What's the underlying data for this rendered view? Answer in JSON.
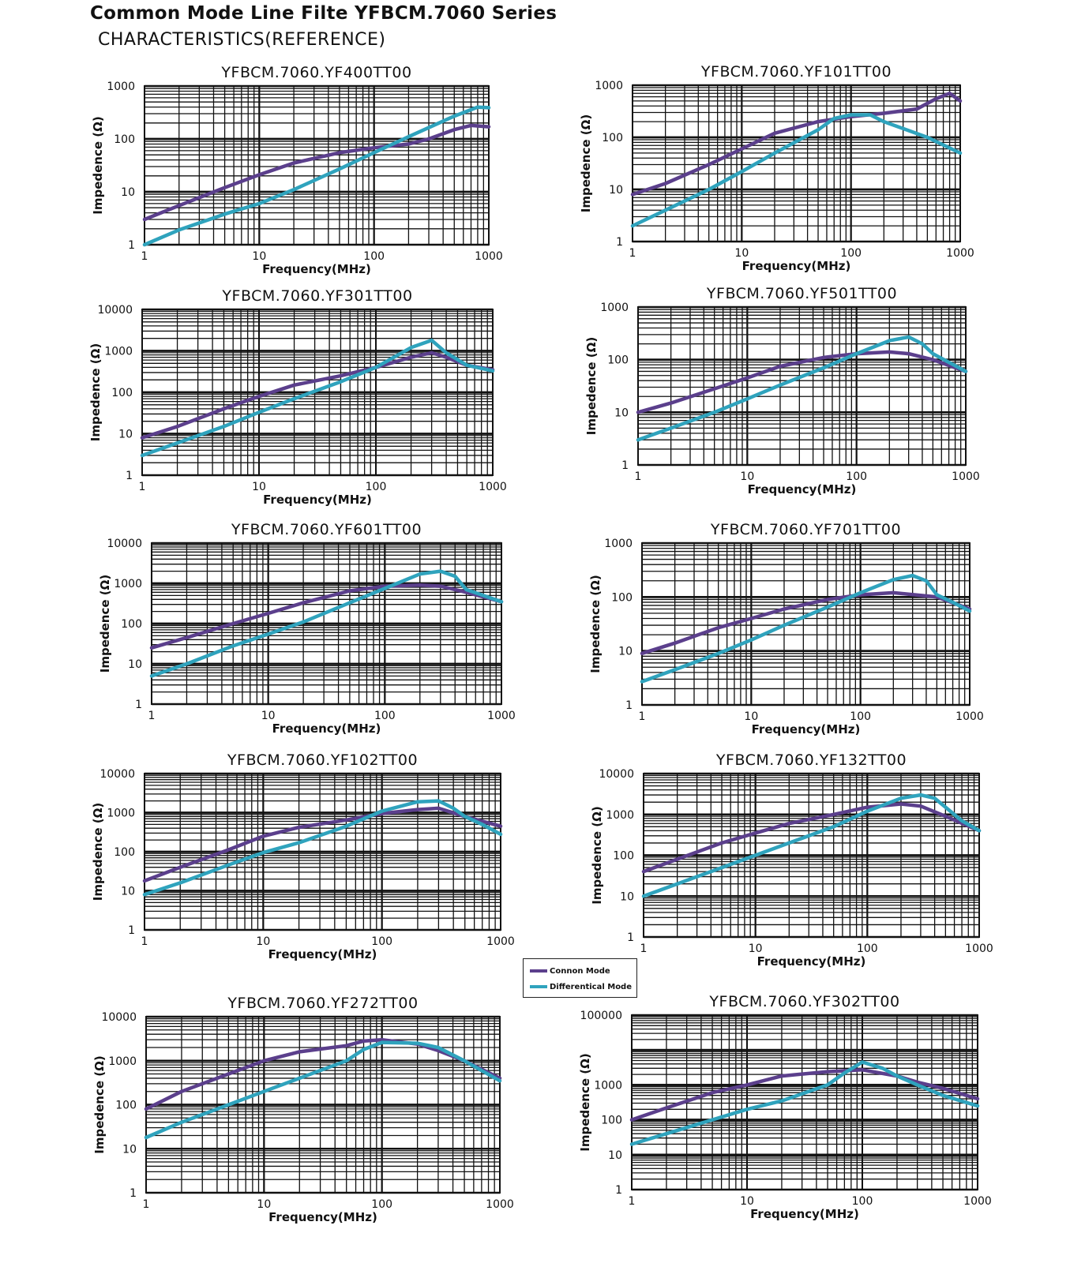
{
  "header": {
    "title": "Common Mode Line Filte YFBCM.7060 Series",
    "subtitle": "CHARACTERISTICS(REFERENCE)"
  },
  "legend": {
    "common_label": "Connon Mode",
    "differential_label": "Differentical Mode",
    "common_color": "#5b3f8c",
    "differential_color": "#2fa3bd"
  },
  "chart_data": [
    {
      "type": "line",
      "title": "YFBCM.7060.YF400TT00",
      "xlabel": "Frequency(MHz)",
      "ylabel": "Impedence (Ω)",
      "x_scale": "log",
      "y_scale": "log",
      "xlim": [
        1,
        1000
      ],
      "ylim": [
        1,
        1000
      ],
      "x_ticks": [
        "1",
        "10",
        "100",
        "1000"
      ],
      "y_ticks": [
        "1",
        "10",
        "100",
        "1000"
      ],
      "grid": true,
      "series": [
        {
          "name": "Connon Mode",
          "x": [
            1,
            2,
            5,
            10,
            20,
            50,
            100,
            200,
            300,
            500,
            700,
            1000
          ],
          "y": [
            3,
            5.5,
            12,
            21,
            35,
            55,
            68,
            80,
            100,
            150,
            180,
            170
          ]
        },
        {
          "name": "Differentical Mode",
          "x": [
            1,
            2,
            5,
            10,
            20,
            50,
            100,
            200,
            500,
            800,
            1000
          ],
          "y": [
            1,
            1.9,
            3.8,
            6,
            11,
            27,
            55,
            110,
            270,
            400,
            390
          ]
        }
      ]
    },
    {
      "type": "line",
      "title": "YFBCM.7060.YF101TT00",
      "xlabel": "Frequency(MHz)",
      "ylabel": "Impedence (Ω)",
      "x_scale": "log",
      "y_scale": "log",
      "xlim": [
        1,
        1000
      ],
      "ylim": [
        1,
        1000
      ],
      "x_ticks": [
        "1",
        "10",
        "100",
        "1000"
      ],
      "y_ticks": [
        "1",
        "10",
        "100",
        "1000"
      ],
      "grid": true,
      "series": [
        {
          "name": "Connon Mode",
          "x": [
            1,
            2,
            5,
            10,
            20,
            50,
            100,
            200,
            400,
            600,
            800,
            1000
          ],
          "y": [
            8,
            13,
            30,
            60,
            120,
            200,
            250,
            290,
            350,
            550,
            700,
            500
          ]
        },
        {
          "name": "Differentical Mode",
          "x": [
            1,
            2,
            5,
            10,
            20,
            50,
            70,
            100,
            150,
            200,
            500,
            1000
          ],
          "y": [
            2,
            4,
            10,
            22,
            50,
            140,
            230,
            270,
            270,
            200,
            100,
            50
          ]
        }
      ]
    },
    {
      "type": "line",
      "title": "YFBCM.7060.YF301TT00",
      "xlabel": "Frequency(MHz)",
      "ylabel": "Impedence (Ω)",
      "x_scale": "log",
      "y_scale": "log",
      "xlim": [
        1,
        1000
      ],
      "ylim": [
        1,
        10000
      ],
      "x_ticks": [
        "1",
        "10",
        "100",
        "1000"
      ],
      "y_ticks": [
        "1",
        "10",
        "100",
        "1000",
        "10000"
      ],
      "grid": true,
      "series": [
        {
          "name": "Connon Mode",
          "x": [
            1,
            2,
            5,
            10,
            20,
            50,
            100,
            200,
            300,
            400,
            600,
            1000
          ],
          "y": [
            8,
            15,
            40,
            80,
            150,
            250,
            400,
            700,
            900,
            700,
            450,
            350
          ]
        },
        {
          "name": "Differentical Mode",
          "x": [
            1,
            2,
            5,
            10,
            20,
            50,
            100,
            200,
            300,
            400,
            600,
            1000
          ],
          "y": [
            3,
            6,
            15,
            33,
            70,
            180,
            400,
            1200,
            1800,
            900,
            450,
            330
          ]
        }
      ]
    },
    {
      "type": "line",
      "title": "YFBCM.7060.YF501TT00",
      "xlabel": "Frequency(MHz)",
      "ylabel": "Impedence (Ω)",
      "x_scale": "log",
      "y_scale": "log",
      "xlim": [
        1,
        1000
      ],
      "ylim": [
        1,
        1000
      ],
      "x_ticks": [
        "1",
        "10",
        "100",
        "1000"
      ],
      "y_ticks": [
        "1",
        "10",
        "100",
        "1000"
      ],
      "grid": true,
      "series": [
        {
          "name": "Connon Mode",
          "x": [
            1,
            2,
            5,
            10,
            20,
            50,
            100,
            200,
            300,
            500,
            1000
          ],
          "y": [
            10,
            15,
            28,
            45,
            75,
            110,
            130,
            140,
            130,
            100,
            60
          ]
        },
        {
          "name": "Differentical Mode",
          "x": [
            1,
            2,
            5,
            10,
            20,
            50,
            100,
            200,
            300,
            400,
            500,
            1000
          ],
          "y": [
            3,
            5,
            10,
            18,
            33,
            70,
            130,
            230,
            270,
            200,
            130,
            60
          ]
        }
      ]
    },
    {
      "type": "line",
      "title": "YFBCM.7060.YF601TT00",
      "xlabel": "Frequency(MHz)",
      "ylabel": "Impedence (Ω)",
      "x_scale": "log",
      "y_scale": "log",
      "xlim": [
        1,
        1000
      ],
      "ylim": [
        1,
        10000
      ],
      "x_ticks": [
        "1",
        "10",
        "100",
        "1000"
      ],
      "y_ticks": [
        "1",
        "10",
        "100",
        "1000",
        "10000"
      ],
      "grid": true,
      "series": [
        {
          "name": "Connon Mode",
          "x": [
            1,
            2,
            5,
            10,
            20,
            50,
            100,
            200,
            300,
            500,
            1000
          ],
          "y": [
            25,
            45,
            100,
            180,
            330,
            650,
            850,
            900,
            850,
            600,
            350
          ]
        },
        {
          "name": "Differentical Mode",
          "x": [
            1,
            2,
            5,
            10,
            20,
            50,
            100,
            200,
            300,
            400,
            500,
            700,
            1000
          ],
          "y": [
            5,
            10,
            28,
            55,
            110,
            330,
            750,
            1700,
            2000,
            1500,
            700,
            500,
            350
          ]
        }
      ]
    },
    {
      "type": "line",
      "title": "YFBCM.7060.YF701TT00",
      "xlabel": "Frequency(MHz)",
      "ylabel": "Impedence (Ω)",
      "x_scale": "log",
      "y_scale": "log",
      "xlim": [
        1,
        1000
      ],
      "ylim": [
        1,
        1000
      ],
      "x_ticks": [
        "1",
        "10",
        "100",
        "1000"
      ],
      "y_ticks": [
        "1",
        "10",
        "100",
        "1000"
      ],
      "grid": true,
      "series": [
        {
          "name": "Connon Mode",
          "x": [
            1,
            2,
            5,
            10,
            20,
            50,
            100,
            200,
            500,
            1000
          ],
          "y": [
            9,
            14,
            27,
            40,
            60,
            90,
            110,
            120,
            100,
            60
          ]
        },
        {
          "name": "Differentical Mode",
          "x": [
            1,
            2,
            5,
            10,
            20,
            50,
            100,
            200,
            300,
            400,
            500,
            700,
            1000
          ],
          "y": [
            2.7,
            4.5,
            9,
            16,
            30,
            65,
            120,
            210,
            250,
            200,
            110,
            80,
            55
          ]
        }
      ]
    },
    {
      "type": "line",
      "title": "YFBCM.7060.YF102TT00",
      "xlabel": "Frequency(MHz)",
      "ylabel": "Impedence (Ω)",
      "x_scale": "log",
      "y_scale": "log",
      "xlim": [
        1,
        1000
      ],
      "ylim": [
        1,
        10000
      ],
      "x_ticks": [
        "1",
        "10",
        "100",
        "1000"
      ],
      "y_ticks": [
        "1",
        "10",
        "100",
        "1000",
        "10000"
      ],
      "grid": true,
      "series": [
        {
          "name": "Connon Mode",
          "x": [
            1,
            2,
            5,
            10,
            20,
            50,
            100,
            200,
            300,
            500,
            1000
          ],
          "y": [
            18,
            40,
            110,
            250,
            420,
            650,
            950,
            1200,
            1300,
            800,
            450
          ]
        },
        {
          "name": "Differentical Mode",
          "x": [
            1,
            2,
            5,
            10,
            20,
            50,
            100,
            200,
            300,
            400,
            500,
            700,
            1000
          ],
          "y": [
            8,
            16,
            45,
            95,
            170,
            450,
            1100,
            1900,
            2000,
            1300,
            800,
            500,
            280
          ]
        }
      ]
    },
    {
      "type": "line",
      "title": "YFBCM.7060.YF132TT00",
      "xlabel": "Frequency(MHz)",
      "ylabel": "Impedence (Ω)",
      "x_scale": "log",
      "y_scale": "log",
      "xlim": [
        1,
        1000
      ],
      "ylim": [
        1,
        10000
      ],
      "x_ticks": [
        "1",
        "10",
        "100",
        "1000"
      ],
      "y_ticks": [
        "1",
        "10",
        "100",
        "1000",
        "10000"
      ],
      "grid": true,
      "series": [
        {
          "name": "Connon Mode",
          "x": [
            1,
            2,
            5,
            10,
            20,
            50,
            100,
            200,
            300,
            500,
            1000
          ],
          "y": [
            40,
            80,
            200,
            350,
            600,
            1000,
            1500,
            1800,
            1600,
            900,
            400
          ]
        },
        {
          "name": "Differentical Mode",
          "x": [
            1,
            2,
            5,
            10,
            20,
            50,
            100,
            200,
            300,
            400,
            500,
            700,
            1000
          ],
          "y": [
            10,
            20,
            50,
            100,
            200,
            500,
            1200,
            2500,
            3000,
            2500,
            1500,
            700,
            400
          ]
        }
      ]
    },
    {
      "type": "line",
      "title": "YFBCM.7060.YF272TT00",
      "xlabel": "Frequency(MHz)",
      "ylabel": "Impedence (Ω)",
      "x_scale": "log",
      "y_scale": "log",
      "xlim": [
        1,
        1000
      ],
      "ylim": [
        1,
        10000
      ],
      "x_ticks": [
        "1",
        "10",
        "100",
        "1000"
      ],
      "y_ticks": [
        "1",
        "10",
        "100",
        "1000",
        "10000"
      ],
      "grid": true,
      "series": [
        {
          "name": "Connon Mode",
          "x": [
            1,
            2,
            5,
            10,
            20,
            50,
            70,
            100,
            200,
            300,
            500,
            1000
          ],
          "y": [
            80,
            200,
            500,
            1000,
            1600,
            2200,
            2800,
            3000,
            2400,
            1700,
            1000,
            400
          ]
        },
        {
          "name": "Differentical Mode",
          "x": [
            1,
            2,
            5,
            10,
            20,
            50,
            70,
            100,
            200,
            300,
            500,
            1000
          ],
          "y": [
            18,
            40,
            100,
            200,
            400,
            1000,
            1800,
            2600,
            2500,
            2000,
            1000,
            350
          ]
        }
      ]
    },
    {
      "type": "line",
      "title": "YFBCM.7060.YF302TT00",
      "xlabel": "Frequency(MHz)",
      "ylabel": "Impedence (Ω)",
      "x_scale": "log",
      "y_scale": "log",
      "xlim": [
        1,
        1000
      ],
      "ylim": [
        1,
        100000
      ],
      "x_ticks": [
        "1",
        "10",
        "100",
        "1000"
      ],
      "y_ticks": [
        "1",
        "10",
        "100",
        "1000",
        "100000"
      ],
      "grid": true,
      "series": [
        {
          "name": "Connon Mode",
          "x": [
            1,
            2,
            5,
            10,
            20,
            50,
            100,
            200,
            300,
            500,
            1000
          ],
          "y": [
            100,
            220,
            600,
            1000,
            1800,
            2400,
            2700,
            1800,
            1200,
            800,
            400
          ]
        },
        {
          "name": "Differentical Mode",
          "x": [
            1,
            2,
            5,
            10,
            20,
            50,
            70,
            100,
            150,
            200,
            300,
            500,
            1000
          ],
          "y": [
            20,
            40,
            100,
            200,
            350,
            1000,
            2200,
            4500,
            3000,
            1800,
            1000,
            500,
            250
          ]
        }
      ]
    }
  ]
}
